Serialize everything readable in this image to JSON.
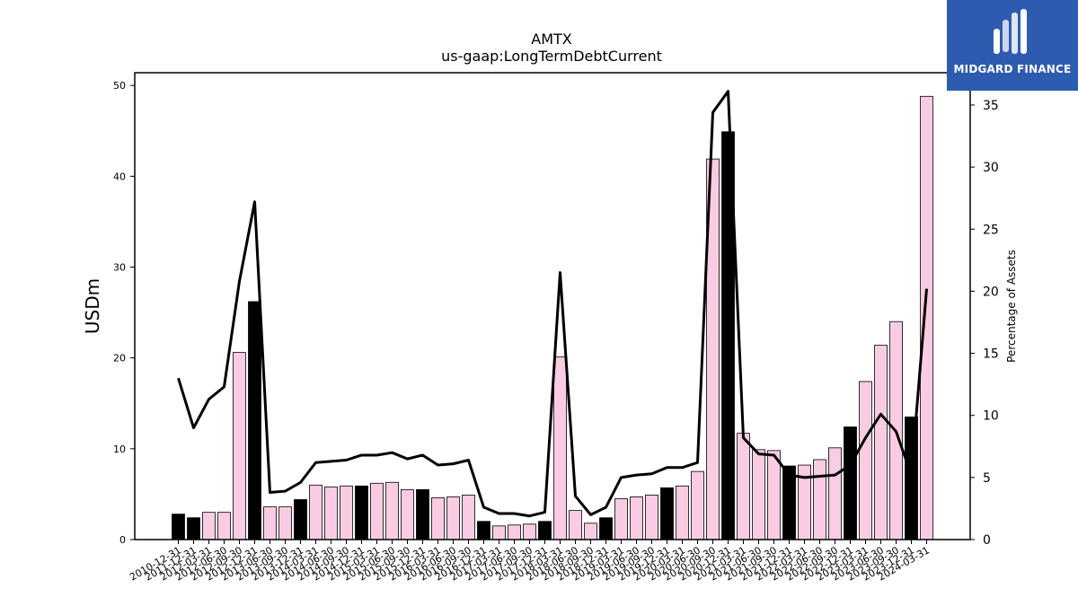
{
  "brand": {
    "name": "MIDGARD FINANCE",
    "logo_icon": "midgard-m-icon",
    "background": "#2d5bb0"
  },
  "chart_data": {
    "type": "bar",
    "title": "AMTX",
    "subtitle": "us-gaap:LongTermDebtCurrent",
    "ylabel": "USDm",
    "y2label": "Percentage of Assets",
    "ylim": [
      0,
      51.4
    ],
    "y2lim": [
      0,
      37.6
    ],
    "yticks": [
      0,
      10,
      20,
      30,
      40,
      50
    ],
    "y2ticks": [
      0,
      5,
      10,
      15,
      20,
      25,
      30,
      35
    ],
    "bar_colors": {
      "annual": "#000000",
      "quarterly": "#f9cce3"
    },
    "line_color": "#000000",
    "categories": [
      "2010-12-31",
      "2011-12-31",
      "2012-03-31",
      "2012-06-30",
      "2012-09-30",
      "2012-12-31",
      "2013-06-30",
      "2013-09-30",
      "2013-12-31",
      "2014-03-31",
      "2014-06-30",
      "2014-09-30",
      "2014-12-31",
      "2015-03-31",
      "2015-06-30",
      "2015-09-30",
      "2015-12-31",
      "2016-03-31",
      "2016-06-30",
      "2016-09-30",
      "2016-12-31",
      "2017-03-31",
      "2017-06-30",
      "2017-09-30",
      "2017-12-31",
      "2018-03-31",
      "2018-06-30",
      "2018-09-30",
      "2018-12-31",
      "2019-03-31",
      "2019-06-30",
      "2019-09-30",
      "2019-12-31",
      "2020-03-31",
      "2020-06-30",
      "2020-09-30",
      "2020-12-31",
      "2021-03-31",
      "2021-06-30",
      "2021-09-30",
      "2021-12-31",
      "2022-03-31",
      "2022-06-30",
      "2022-09-30",
      "2022-12-31",
      "2023-03-31",
      "2023-06-30",
      "2023-09-30",
      "2023-12-31",
      "2024-03-31"
    ],
    "series": [
      {
        "kind": "bar",
        "axis": "left",
        "values": [
          2.8,
          2.4,
          3.0,
          3.0,
          20.6,
          26.2,
          3.6,
          3.6,
          4.4,
          6.0,
          5.8,
          5.9,
          5.9,
          6.2,
          6.3,
          5.5,
          5.5,
          4.6,
          4.7,
          4.9,
          2.0,
          1.5,
          1.6,
          1.7,
          2.0,
          20.1,
          3.2,
          1.8,
          2.4,
          4.5,
          4.7,
          4.9,
          5.7,
          5.9,
          7.5,
          41.9,
          44.9,
          11.7,
          9.9,
          9.8,
          8.1,
          8.2,
          8.8,
          10.1,
          12.4,
          17.4,
          21.4,
          24.0,
          13.5,
          48.8
        ],
        "annual": [
          true,
          true,
          false,
          false,
          false,
          true,
          false,
          false,
          true,
          false,
          false,
          false,
          true,
          false,
          false,
          false,
          true,
          false,
          false,
          false,
          true,
          false,
          false,
          false,
          true,
          false,
          false,
          false,
          true,
          false,
          false,
          false,
          true,
          false,
          false,
          false,
          true,
          false,
          false,
          false,
          true,
          false,
          false,
          false,
          true,
          false,
          false,
          false,
          true,
          false
        ]
      },
      {
        "kind": "line",
        "axis": "right",
        "values": [
          13.0,
          9.0,
          11.3,
          12.3,
          20.8,
          27.2,
          3.8,
          3.9,
          4.6,
          6.2,
          6.3,
          6.4,
          6.8,
          6.8,
          7.0,
          6.5,
          6.8,
          6.0,
          6.1,
          6.4,
          2.6,
          2.1,
          2.1,
          1.9,
          2.2,
          21.5,
          3.5,
          2.0,
          2.6,
          5.0,
          5.2,
          5.3,
          5.8,
          5.8,
          6.2,
          34.4,
          36.1,
          8.2,
          6.9,
          6.8,
          5.2,
          5.0,
          5.1,
          5.2,
          6.0,
          8.2,
          10.1,
          8.7,
          5.2,
          20.2
        ]
      }
    ]
  }
}
